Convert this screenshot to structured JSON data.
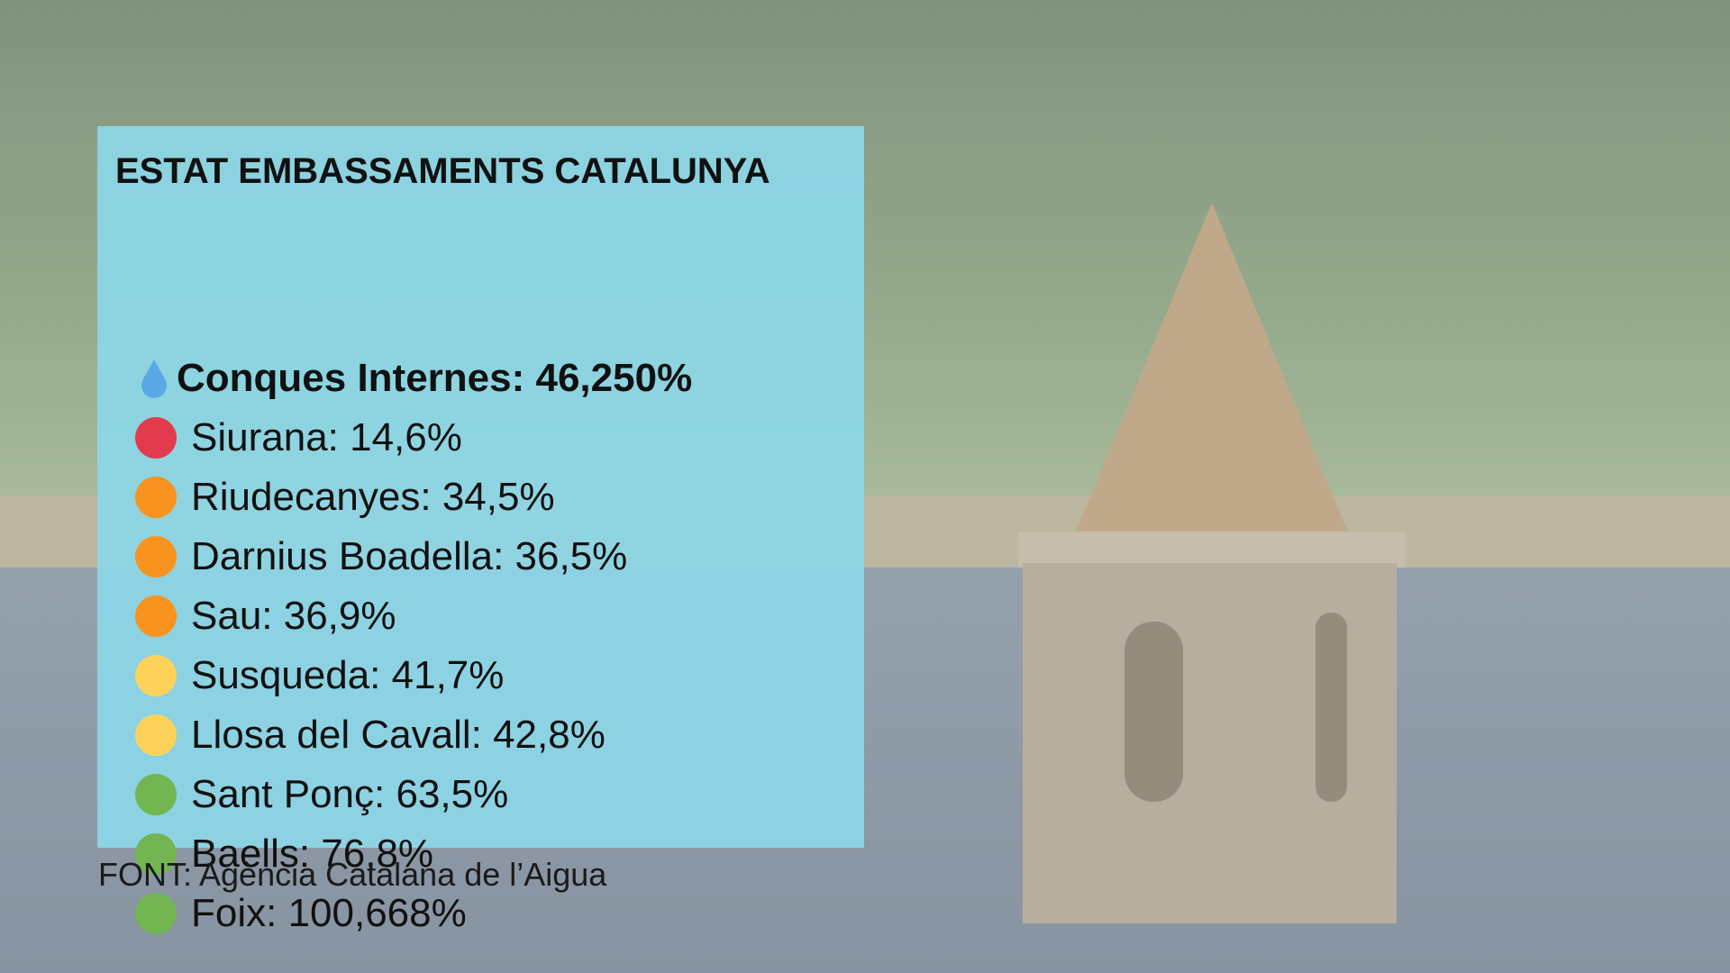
{
  "card": {
    "title": "ESTAT EMBASSAMENTS CATALUNYA",
    "total": "Conques Internes: 46,250%",
    "items": [
      {
        "label": "Siurana: 14,6%",
        "color": "#e23b4e"
      },
      {
        "label": "Riudecanyes: 34,5%",
        "color": "#f7931e"
      },
      {
        "label": "Darnius Boadella: 36,5%",
        "color": "#f7931e"
      },
      {
        "label": "Sau: 36,9%",
        "color": "#f7931e"
      },
      {
        "label": "Susqueda: 41,7%",
        "color": "#fdd25a"
      },
      {
        "label": "Llosa del Cavall: 42,8%",
        "color": "#fdd25a"
      },
      {
        "label": "Sant Ponç: 63,5%",
        "color": "#72b551"
      },
      {
        "label": "Baells: 76,8%",
        "color": "#72b551"
      },
      {
        "label": "Foix: 100,668%",
        "color": "#72b551"
      }
    ]
  },
  "footer": "FONT: Agència Catalana de l’Aigua"
}
